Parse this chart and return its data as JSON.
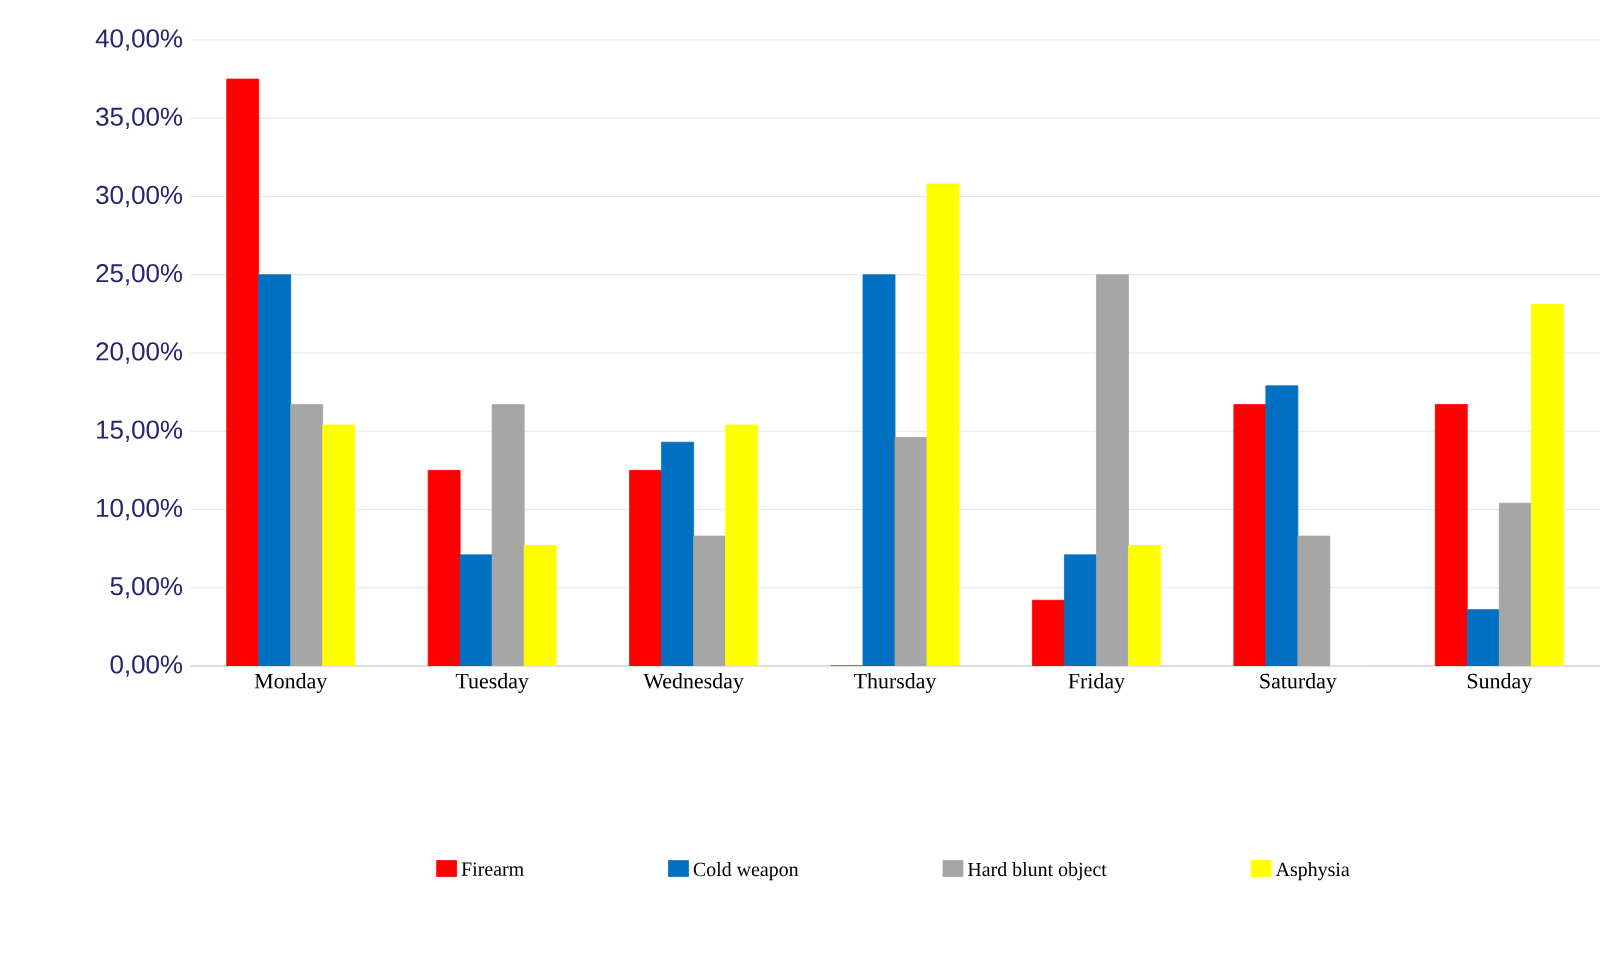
{
  "chart_data": {
    "type": "bar",
    "categories": [
      "Monday",
      "Tuesday",
      "Wednesday",
      "Thursday",
      "Friday",
      "Saturday",
      "Sunday"
    ],
    "series": [
      {
        "name": "Firearm",
        "color": "#ff0000",
        "values": [
          37.5,
          12.5,
          12.5,
          0,
          4.2,
          16.7,
          16.7
        ]
      },
      {
        "name": "Cold weapon",
        "color": "#0070c0",
        "values": [
          25,
          7.1,
          14.3,
          25,
          7.1,
          17.9,
          3.6
        ]
      },
      {
        "name": "Hard blunt object",
        "color": "#a6a6a6",
        "values": [
          16.7,
          16.7,
          8.3,
          14.6,
          25,
          8.3,
          10.4
        ]
      },
      {
        "name": "Asphysia",
        "color": "#ffff00",
        "values": [
          15.4,
          7.7,
          15.4,
          30.8,
          7.7,
          0,
          23.1
        ]
      }
    ],
    "ylim": [
      0,
      40
    ],
    "yticks": [
      {
        "value": 0,
        "label": "0,00%"
      },
      {
        "value": 5,
        "label": "5,00%"
      },
      {
        "value": 10,
        "label": "10,00%"
      },
      {
        "value": 15,
        "label": "15,00%"
      },
      {
        "value": 20,
        "label": "20,00%"
      },
      {
        "value": 25,
        "label": "25,00%"
      },
      {
        "value": 30,
        "label": "30,00%"
      },
      {
        "value": 35,
        "label": "35,00%"
      },
      {
        "value": 40,
        "label": "40,00%"
      }
    ],
    "grid": "y",
    "legend": "bottom"
  }
}
